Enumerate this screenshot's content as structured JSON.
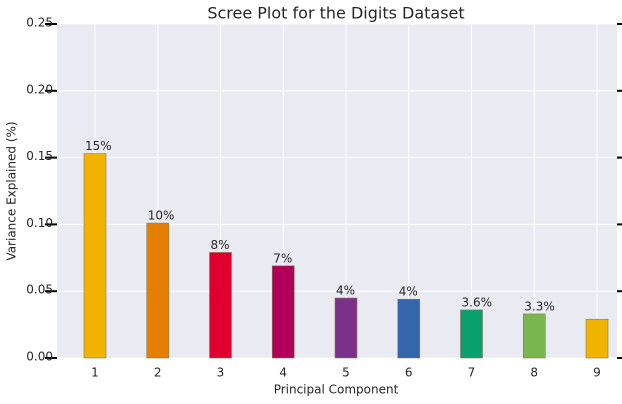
{
  "chart_data": {
    "type": "bar",
    "title": "Scree Plot for the Digits Dataset",
    "x_label": "Principal Component",
    "y_label": "Variance Explained (%)",
    "categories": [
      "1",
      "2",
      "3",
      "4",
      "5",
      "6",
      "7",
      "8",
      "9"
    ],
    "values": [
      0.153,
      0.101,
      0.079,
      0.069,
      0.0449,
      0.044,
      0.036,
      0.033,
      0.029
    ],
    "value_labels": [
      "15%",
      "10%",
      "8%",
      "7%",
      "4%",
      "4%",
      "3.6%",
      "3.3%",
      null
    ],
    "colors": [
      "#f0b400",
      "#e67e00",
      "#e0002f",
      "#b0005a",
      "#7b3089",
      "#3366aa",
      "#0aa06e",
      "#7ab650",
      "#f0b400"
    ],
    "ylim": [
      0,
      0.25
    ],
    "yticks": [
      {
        "value": 0,
        "label": "0.00"
      },
      {
        "value": 0.05,
        "label": "0.05"
      },
      {
        "value": 0.1,
        "label": "0.10"
      },
      {
        "value": 0.15,
        "label": "0.15"
      },
      {
        "value": 0.2,
        "label": "0.20"
      },
      {
        "value": 0.25,
        "label": "0.25"
      }
    ],
    "grid": true
  }
}
